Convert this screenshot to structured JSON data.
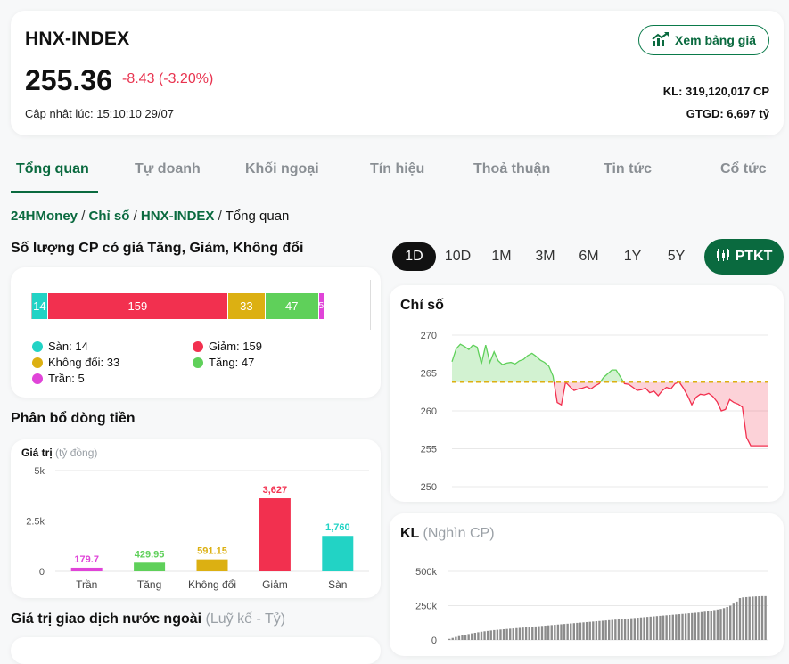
{
  "header": {
    "index_name": "HNX-INDEX",
    "index_value": "255.36",
    "change": "-8.43 (-3.20%)",
    "update_time": "Cập nhật lúc: 15:10:10 29/07",
    "price_board_label": "Xem bảng giá",
    "volume": "KL: 319,120,017 CP",
    "gtgd": "GTGD: 6,697 tỷ",
    "colors": {
      "down": "#e8334f",
      "brand": "#0a6a3f"
    }
  },
  "tabs": [
    {
      "label": "Tổng quan",
      "active": true
    },
    {
      "label": "Tự doanh"
    },
    {
      "label": "Khối ngoại"
    },
    {
      "label": "Tín hiệu"
    },
    {
      "label": "Thoả thuận"
    },
    {
      "label": "Tin tức"
    },
    {
      "label": "Cổ tức"
    }
  ],
  "breadcrumb": {
    "items": [
      "24HMoney",
      "Chỉ số",
      "HNX-INDEX"
    ],
    "current": "Tổng quan",
    "separator": "/"
  },
  "breadth": {
    "title": "Số lượng CP có giá Tăng, Giảm, Không đổi",
    "segments": [
      {
        "key": "san",
        "value": 14,
        "label": "14",
        "color": "#22d3c5"
      },
      {
        "key": "giam",
        "value": 159,
        "label": "159",
        "color": "#f2304f"
      },
      {
        "key": "khongdoi",
        "value": 33,
        "label": "33",
        "color": "#dcb012"
      },
      {
        "key": "tang",
        "value": 47,
        "label": "47",
        "color": "#5fd05a"
      },
      {
        "key": "tran",
        "value": 5,
        "label": "5",
        "color": "#e044d8"
      }
    ],
    "legend": [
      {
        "label": "Sàn: 14",
        "color": "#22d3c5"
      },
      {
        "label": "Giảm: 159",
        "color": "#f2304f"
      },
      {
        "label": "Không đổi: 33",
        "color": "#dcb012"
      },
      {
        "label": "Tăng: 47",
        "color": "#5fd05a"
      },
      {
        "label": "Trần: 5",
        "color": "#e044d8"
      }
    ]
  },
  "flow": {
    "title": "Phân bổ dòng tiền",
    "axis_title": "Giá trị",
    "axis_unit": "(tỷ đồng)"
  },
  "foreign": {
    "title": "Giá trị giao dịch nước ngoài",
    "subtitle": "(Luỹ kế - Tỷ)"
  },
  "periods": [
    {
      "label": "1D",
      "active": true
    },
    {
      "label": "10D"
    },
    {
      "label": "1M"
    },
    {
      "label": "3M"
    },
    {
      "label": "6M"
    },
    {
      "label": "1Y"
    },
    {
      "label": "5Y"
    }
  ],
  "ptkt_label": "PTKT",
  "index_chart": {
    "title": "Chỉ số"
  },
  "volume_chart": {
    "title": "KL",
    "subtitle": "(Nghìn CP)"
  },
  "chart_data": [
    {
      "type": "bar",
      "title": "",
      "ylabel": "Giá trị (tỷ đồng)",
      "categories": [
        "Trần",
        "Tăng",
        "Không đổi",
        "Giảm",
        "Sàn"
      ],
      "values": [
        179.7,
        429.95,
        591.15,
        3627,
        1760
      ],
      "value_labels": [
        "179.7",
        "429.95",
        "591.15",
        "3,627",
        "1,760"
      ],
      "colors": [
        "#e044d8",
        "#5fd05a",
        "#dcb012",
        "#f2304f",
        "#22d3c5"
      ],
      "ylim": [
        0,
        5000
      ],
      "yticks": [
        0,
        2500,
        5000
      ],
      "ytick_labels": [
        "0",
        "2.5k",
        "5k"
      ],
      "grid": true
    },
    {
      "type": "area",
      "title": "Chỉ số",
      "ylim": [
        250,
        270
      ],
      "yticks": [
        250,
        255,
        260,
        265,
        270
      ],
      "reference": 263.79,
      "colors": {
        "above": "#5fd05a",
        "below": "#f2304f",
        "reference": "#dcb012"
      },
      "values": [
        266.5,
        268.2,
        268.8,
        268.5,
        268.1,
        268.7,
        268.4,
        266.2,
        268.7,
        266.4,
        267.8,
        266.6,
        266.1,
        266.3,
        266.4,
        266.2,
        266.6,
        266.8,
        267.3,
        267.6,
        267.2,
        266.7,
        266.4,
        265.9,
        264.6,
        261.1,
        260.8,
        263.8,
        263.2,
        262.7,
        262.9,
        263.0,
        263.2,
        262.9,
        263.3,
        263.6,
        264.4,
        264.9,
        265.4,
        265.4,
        264.5,
        263.6,
        263.5,
        263.1,
        262.7,
        262.8,
        263.0,
        262.4,
        262.6,
        262.0,
        262.7,
        263.1,
        262.9,
        263.6,
        263.8,
        263.0,
        262.0,
        260.8,
        261.8,
        262.2,
        262.1,
        262.3,
        261.9,
        261.2,
        260.0,
        260.2,
        261.5,
        261.1,
        260.9,
        260.5,
        256.5,
        255.4,
        255.4,
        255.4,
        255.4,
        255.4
      ]
    },
    {
      "type": "bar",
      "title": "KL",
      "ylabel": "Nghìn CP",
      "ylim": [
        0,
        500000
      ],
      "yticks": [
        0,
        250000,
        500000
      ],
      "ytick_labels": [
        "0",
        "250k",
        "500k"
      ],
      "values": [
        8000,
        15000,
        22000,
        28000,
        33000,
        38000,
        43000,
        48000,
        52000,
        56000,
        60000,
        63000,
        66000,
        69000,
        72000,
        74000,
        76000,
        78000,
        80000,
        82000,
        84000,
        86000,
        88000,
        90000,
        92000,
        94000,
        96000,
        98000,
        100000,
        102000,
        104000,
        106000,
        108000,
        110000,
        112000,
        114000,
        116000,
        118000,
        120000,
        122000,
        124000,
        126000,
        128000,
        130000,
        132000,
        134000,
        136000,
        138000,
        140000,
        142000,
        144000,
        146000,
        148000,
        150000,
        152000,
        154000,
        156000,
        158000,
        160000,
        162000,
        164000,
        166000,
        168000,
        170000,
        172000,
        174000,
        176000,
        178000,
        180000,
        182000,
        184000,
        186000,
        188000,
        190000,
        192000,
        194000,
        196000,
        198000,
        200000,
        203000,
        206000,
        210000,
        214000,
        218000,
        222000,
        226000,
        232000,
        240000,
        250000,
        265000,
        280000,
        305000,
        310000,
        312000,
        314000,
        316000,
        317000,
        318000,
        319000,
        319000
      ]
    }
  ]
}
